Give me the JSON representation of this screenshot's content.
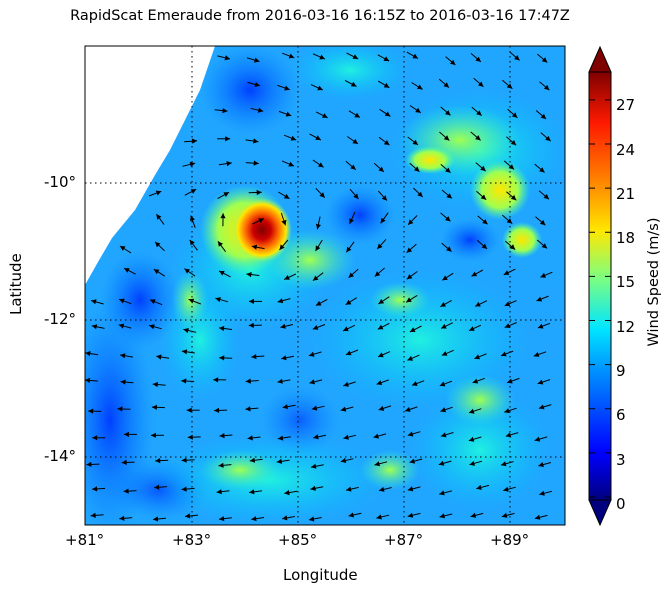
{
  "title": "RapidScat Emeraude from 2016-03-16 16:15Z to 2016-03-16 17:47Z",
  "x_axis": {
    "label": "Longitude",
    "ticks": [
      "+81°",
      "+83°",
      "+85°",
      "+87°",
      "+89°"
    ]
  },
  "y_axis": {
    "label": "Latitude",
    "ticks": [
      "-10°",
      "-12°",
      "-14°"
    ]
  },
  "colorbar": {
    "label": "Wind Speed (m/s)",
    "ticks": [
      "27",
      "24",
      "21",
      "18",
      "15",
      "12",
      "9",
      "6",
      "3",
      "0"
    ],
    "range": [
      0,
      30
    ],
    "colors": [
      "#00007f",
      "#0000ff",
      "#0080ff",
      "#00e5ff",
      "#7fff7f",
      "#ffe600",
      "#ff8000",
      "#ff1a00",
      "#7f0000"
    ]
  },
  "map_data": {
    "lon_range": [
      81,
      90
    ],
    "lat_range": [
      -15,
      -7.8
    ],
    "feature": "Tropical Cyclone Emeraude core near 84.4°E, 10.8°S",
    "peak_wind_ms": 29
  }
}
